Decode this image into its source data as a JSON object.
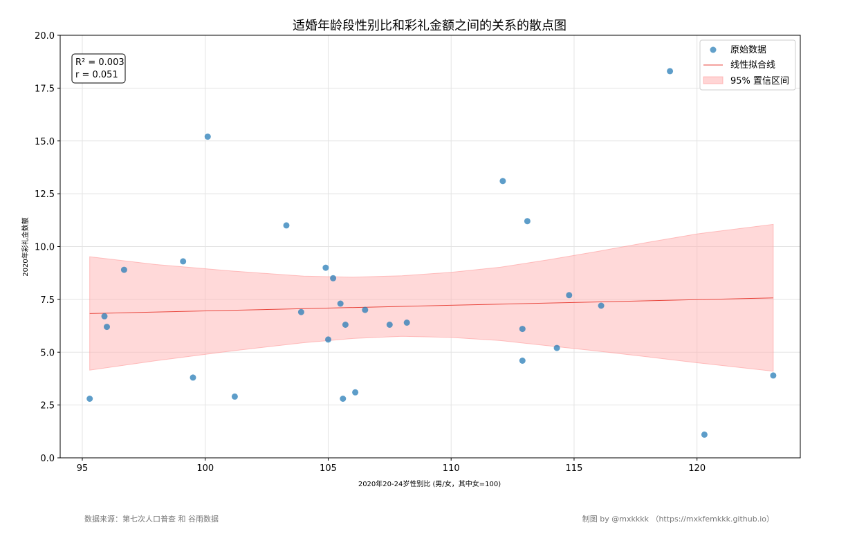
{
  "chart_data": {
    "type": "scatter",
    "title": "适婚年龄段性别比和彩礼金额之间的关系的散点图",
    "xlabel": "2020年20-24岁性别比 (男/女，其中女=100)",
    "ylabel": "2020年彩礼金数额",
    "xlim": [
      94.1,
      124.2
    ],
    "ylim": [
      0,
      20
    ],
    "xticks": [
      "95",
      "100",
      "105",
      "110",
      "115",
      "120"
    ],
    "yticks": [
      "0.0",
      "2.5",
      "5.0",
      "7.5",
      "10.0",
      "12.5",
      "15.0",
      "17.5",
      "20.0"
    ],
    "grid": true,
    "legend_position": "top-right",
    "legend": {
      "points": "原始数据",
      "fit": "线性拟合线",
      "band": "95% 置信区间"
    },
    "stats": {
      "r2": "R² = 0.003",
      "r": "r = 0.051"
    },
    "colors": {
      "points": "#1f77b4",
      "fit": "#e8453c",
      "band": "#ffb3b3"
    },
    "points": [
      {
        "x": 95.3,
        "y": 2.8
      },
      {
        "x": 95.9,
        "y": 6.7
      },
      {
        "x": 96.0,
        "y": 6.2
      },
      {
        "x": 96.7,
        "y": 8.9
      },
      {
        "x": 99.1,
        "y": 9.3
      },
      {
        "x": 99.5,
        "y": 3.8
      },
      {
        "x": 100.1,
        "y": 15.2
      },
      {
        "x": 101.2,
        "y": 2.9
      },
      {
        "x": 103.3,
        "y": 11.0
      },
      {
        "x": 103.9,
        "y": 6.9
      },
      {
        "x": 104.9,
        "y": 9.0
      },
      {
        "x": 105.0,
        "y": 5.6
      },
      {
        "x": 105.2,
        "y": 8.5
      },
      {
        "x": 105.5,
        "y": 7.3
      },
      {
        "x": 105.6,
        "y": 2.8
      },
      {
        "x": 105.7,
        "y": 6.3
      },
      {
        "x": 106.1,
        "y": 3.1
      },
      {
        "x": 106.5,
        "y": 7.0
      },
      {
        "x": 107.5,
        "y": 6.3
      },
      {
        "x": 108.2,
        "y": 6.4
      },
      {
        "x": 112.1,
        "y": 13.1
      },
      {
        "x": 112.9,
        "y": 6.1
      },
      {
        "x": 112.9,
        "y": 4.6
      },
      {
        "x": 113.1,
        "y": 11.2
      },
      {
        "x": 114.3,
        "y": 5.2
      },
      {
        "x": 114.8,
        "y": 7.7
      },
      {
        "x": 116.1,
        "y": 7.2
      },
      {
        "x": 118.9,
        "y": 18.3
      },
      {
        "x": 120.3,
        "y": 1.1
      },
      {
        "x": 123.1,
        "y": 3.9
      }
    ],
    "fit_line": [
      {
        "x": 95.3,
        "y": 6.83
      },
      {
        "x": 123.1,
        "y": 7.57
      }
    ],
    "confidence_band": [
      {
        "x": 95.3,
        "lower": 4.15,
        "upper": 9.52
      },
      {
        "x": 98.0,
        "lower": 4.6,
        "upper": 9.15
      },
      {
        "x": 101.0,
        "lower": 5.05,
        "upper": 8.85
      },
      {
        "x": 104.0,
        "lower": 5.45,
        "upper": 8.6
      },
      {
        "x": 106.0,
        "lower": 5.65,
        "upper": 8.55
      },
      {
        "x": 108.0,
        "lower": 5.75,
        "upper": 8.62
      },
      {
        "x": 110.0,
        "lower": 5.7,
        "upper": 8.78
      },
      {
        "x": 112.0,
        "lower": 5.55,
        "upper": 9.02
      },
      {
        "x": 114.0,
        "lower": 5.3,
        "upper": 9.38
      },
      {
        "x": 116.0,
        "lower": 5.05,
        "upper": 9.78
      },
      {
        "x": 118.0,
        "lower": 4.78,
        "upper": 10.2
      },
      {
        "x": 120.0,
        "lower": 4.5,
        "upper": 10.6
      },
      {
        "x": 123.1,
        "lower": 4.1,
        "upper": 11.05
      }
    ]
  },
  "footer": {
    "source": "数据来源：第七次人口普查 和 谷雨数据",
    "credit": "制图 by @mxkkkk （https://mxkfemkkk.github.io）"
  }
}
